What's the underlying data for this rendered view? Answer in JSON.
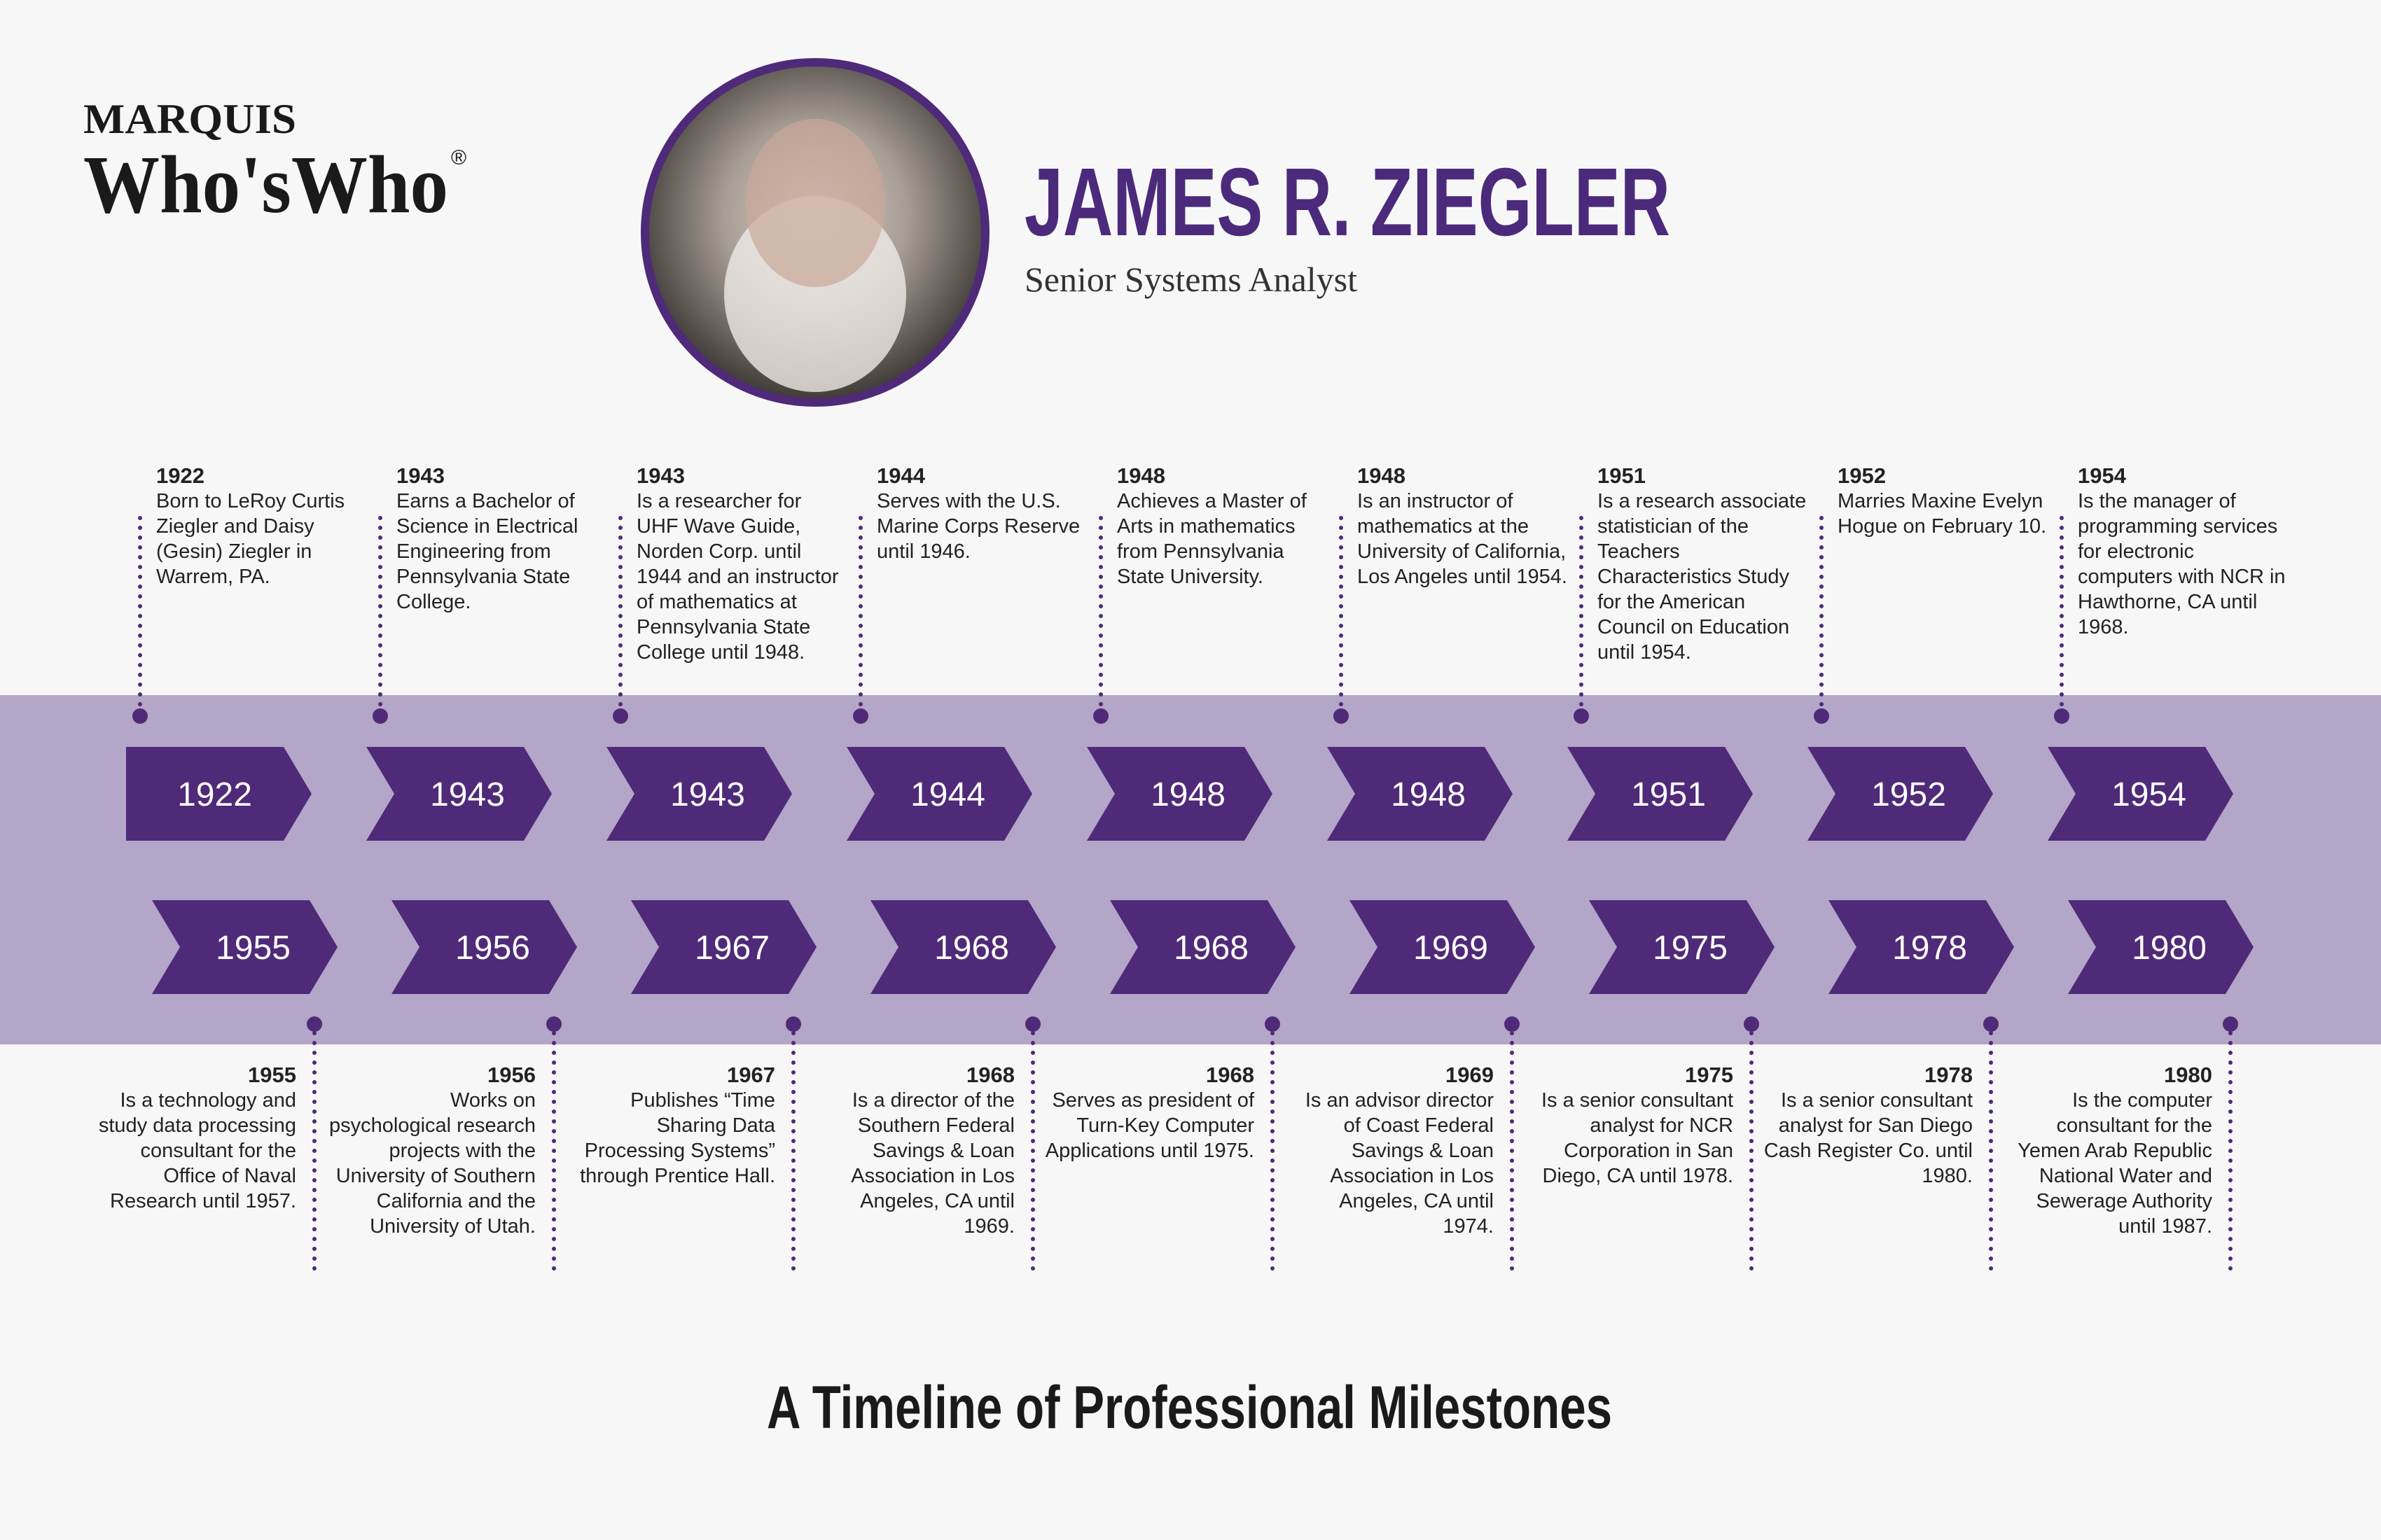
{
  "logo": {
    "top": "MARQUIS",
    "main": "Who'sWho",
    "mark": "®"
  },
  "header": {
    "name": "JAMES R. ZIEGLER",
    "subtitle": "Senior Systems Analyst"
  },
  "top_events": [
    {
      "year": "1922",
      "text": "Born to LeRoy Curtis Ziegler and Daisy (Gesin) Ziegler in Warrem, PA."
    },
    {
      "year": "1943",
      "text": "Earns a Bachelor of Science in Electrical Engineering from Pennsylvania State College."
    },
    {
      "year": "1943",
      "text": "Is a researcher for UHF Wave Guide, Norden Corp. until 1944 and an instructor of mathematics at Pennsylvania State College until 1948."
    },
    {
      "year": "1944",
      "text": "Serves with the U.S. Marine Corps Reserve until 1946."
    },
    {
      "year": "1948",
      "text": "Achieves a Master of Arts in mathematics from Pennsylvania State University."
    },
    {
      "year": "1948",
      "text": "Is an instructor of mathematics at the University of California, Los Angeles until 1954."
    },
    {
      "year": "1951",
      "text": "Is a research associate statistician of the Teachers Characteristics Study for the American Council on Education until 1954."
    },
    {
      "year": "1952",
      "text": "Marries Maxine Evelyn Hogue on February 10."
    },
    {
      "year": "1954",
      "text": "Is the manager of programming services for electronic computers with NCR in Hawthorne, CA until 1968."
    }
  ],
  "bottom_events": [
    {
      "year": "1955",
      "text": "Is a technology and study data processing consultant for the Office of Naval Research until 1957."
    },
    {
      "year": "1956",
      "text": "Works on psychological research projects with the University of Southern California and the University of Utah."
    },
    {
      "year": "1967",
      "text": "Publishes “Time Sharing Data Processing Systems” through Prentice Hall."
    },
    {
      "year": "1968",
      "text": "Is a director of the Southern Federal Savings & Loan Association in Los Angeles, CA until 1969."
    },
    {
      "year": "1968",
      "text": "Serves as president of Turn-Key Computer Applications until 1975."
    },
    {
      "year": "1969",
      "text": "Is an advisor director of Coast Federal Savings & Loan Association in Los Angeles, CA until 1974."
    },
    {
      "year": "1975",
      "text": "Is a senior consultant analyst for NCR Corporation in San Diego, CA until 1978."
    },
    {
      "year": "1978",
      "text": "Is a senior consultant analyst for San Diego Cash Register Co. until 1980."
    },
    {
      "year": "1980",
      "text": "Is the computer consultant for the Yemen Arab Republic National Water and Sewerage Authority until 1987."
    }
  ],
  "footer": {
    "title": "A Timeline of Professional Milestones"
  }
}
